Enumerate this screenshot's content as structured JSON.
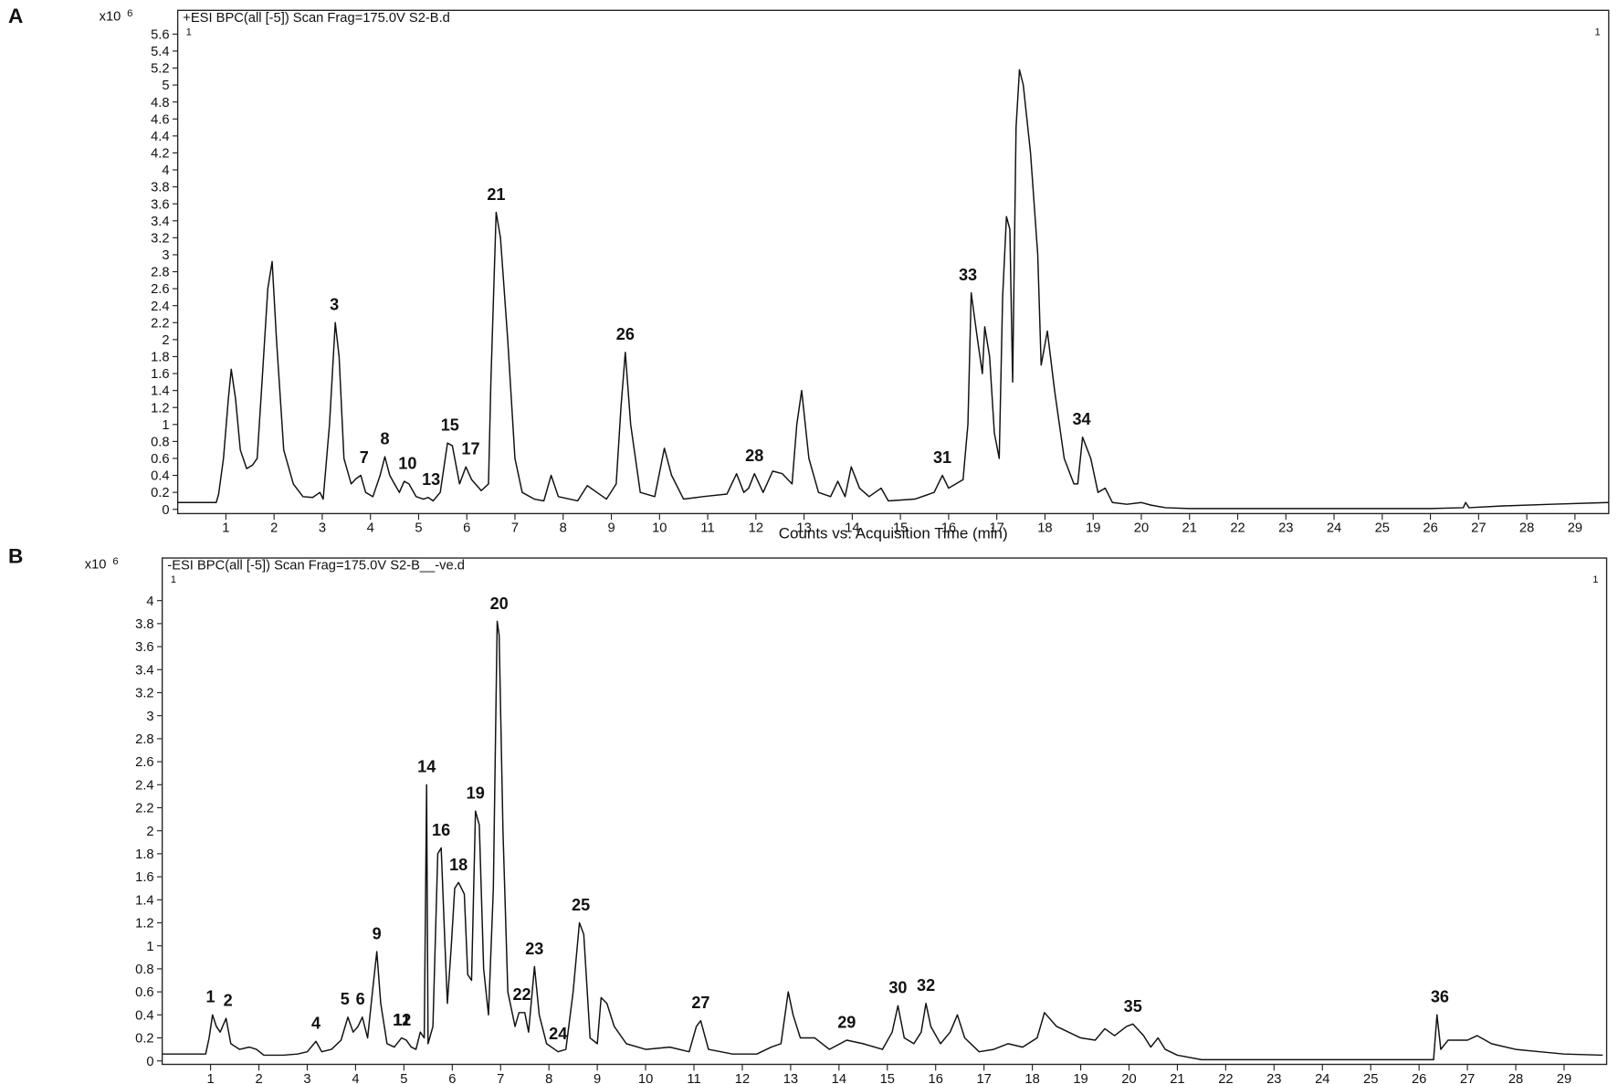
{
  "chart_data": [
    {
      "type": "line",
      "panel_label": "A",
      "title": "+ESI BPC(all [-5]) Scan Frag=175.0V S2-B.d",
      "y_scale": "x10",
      "y_scale_exponent": "6",
      "corner_marks": [
        "1",
        "1"
      ],
      "x_label": "Counts vs. Acquisition Time (min)",
      "color": "#111111",
      "grid": false,
      "xlim": [
        0,
        29.7
      ],
      "ylim": [
        -0.05,
        5.88
      ],
      "xticks": [
        1,
        2,
        3,
        4,
        5,
        6,
        7,
        8,
        9,
        10,
        11,
        12,
        13,
        14,
        15,
        16,
        17,
        18,
        19,
        20,
        21,
        22,
        23,
        24,
        25,
        26,
        27,
        28,
        29
      ],
      "yticks": [
        0,
        0.2,
        0.4,
        0.6,
        0.8,
        1,
        1.2,
        1.4,
        1.6,
        1.8,
        2,
        2.2,
        2.4,
        2.6,
        2.8,
        3,
        3.2,
        3.4,
        3.6,
        3.8,
        4,
        4.2,
        4.4,
        4.6,
        4.8,
        5,
        5.2,
        5.4,
        5.6
      ],
      "x": [
        0,
        0.8,
        0.85,
        0.95,
        1.05,
        1.11,
        1.2,
        1.3,
        1.43,
        1.55,
        1.65,
        1.75,
        1.87,
        1.96,
        2.05,
        2.2,
        2.4,
        2.6,
        2.8,
        2.95,
        3.02,
        3.15,
        3.27,
        3.35,
        3.45,
        3.6,
        3.7,
        3.8,
        3.9,
        4.05,
        4.2,
        4.3,
        4.4,
        4.5,
        4.6,
        4.7,
        4.8,
        4.95,
        5.1,
        5.2,
        5.3,
        5.45,
        5.6,
        5.7,
        5.85,
        5.98,
        6.1,
        6.3,
        6.45,
        6.5,
        6.61,
        6.7,
        6.85,
        7.0,
        7.15,
        7.4,
        7.6,
        7.75,
        7.9,
        8.3,
        8.5,
        8.7,
        8.9,
        9.1,
        9.2,
        9.29,
        9.4,
        9.6,
        9.9,
        10.1,
        10.25,
        10.5,
        10.9,
        11.4,
        11.6,
        11.75,
        11.85,
        11.97,
        12.15,
        12.35,
        12.55,
        12.75,
        12.85,
        12.95,
        13.1,
        13.3,
        13.55,
        13.7,
        13.85,
        13.98,
        14.15,
        14.35,
        14.6,
        14.75,
        15.3,
        15.7,
        15.87,
        16.0,
        16.3,
        16.4,
        16.47,
        16.6,
        16.7,
        16.75,
        16.85,
        16.95,
        17.05,
        17.12,
        17.2,
        17.27,
        17.33,
        17.4,
        17.47,
        17.55,
        17.7,
        17.85,
        17.92,
        18.05,
        18.2,
        18.4,
        18.6,
        18.68,
        18.78,
        18.95,
        19.1,
        19.25,
        19.4,
        19.7,
        20.0,
        20.2,
        20.5,
        21.0,
        26.0,
        26.68,
        26.73,
        26.8,
        27.5,
        28.5,
        29.7
      ],
      "values": [
        0.08,
        0.08,
        0.18,
        0.6,
        1.3,
        1.65,
        1.3,
        0.7,
        0.48,
        0.52,
        0.6,
        1.5,
        2.6,
        2.92,
        2.0,
        0.7,
        0.3,
        0.15,
        0.14,
        0.2,
        0.12,
        1.0,
        2.2,
        1.8,
        0.6,
        0.3,
        0.36,
        0.4,
        0.2,
        0.15,
        0.4,
        0.62,
        0.4,
        0.3,
        0.2,
        0.33,
        0.3,
        0.15,
        0.12,
        0.14,
        0.1,
        0.2,
        0.78,
        0.75,
        0.3,
        0.5,
        0.35,
        0.22,
        0.3,
        1.5,
        3.5,
        3.2,
        2.0,
        0.6,
        0.2,
        0.12,
        0.1,
        0.4,
        0.15,
        0.1,
        0.28,
        0.2,
        0.12,
        0.3,
        1.2,
        1.85,
        1.0,
        0.2,
        0.15,
        0.72,
        0.4,
        0.12,
        0.15,
        0.18,
        0.42,
        0.2,
        0.25,
        0.42,
        0.2,
        0.45,
        0.42,
        0.3,
        1.0,
        1.4,
        0.6,
        0.2,
        0.15,
        0.33,
        0.15,
        0.5,
        0.25,
        0.15,
        0.25,
        0.1,
        0.12,
        0.2,
        0.4,
        0.25,
        0.35,
        1.0,
        2.55,
        2.0,
        1.6,
        2.15,
        1.8,
        0.9,
        0.6,
        2.5,
        3.45,
        3.3,
        1.5,
        4.5,
        5.18,
        5.0,
        4.2,
        3.0,
        1.7,
        2.1,
        1.4,
        0.6,
        0.3,
        0.3,
        0.85,
        0.6,
        0.2,
        0.25,
        0.08,
        0.06,
        0.08,
        0.05,
        0.02,
        0.01,
        0.01,
        0.02,
        0.08,
        0.02,
        0.04,
        0.06,
        0.08
      ],
      "peaks": {
        "labels": [
          "3",
          "7",
          "8",
          "10",
          "13",
          "15",
          "17",
          "21",
          "26",
          "28",
          "31",
          "33",
          "34"
        ],
        "x": [
          3.25,
          3.87,
          4.3,
          4.77,
          5.26,
          5.65,
          6.08,
          6.61,
          9.29,
          11.97,
          15.87,
          16.4,
          18.76
        ]
      }
    },
    {
      "type": "line",
      "panel_label": "B",
      "title": "-ESI BPC(all [-5]) Scan Frag=175.0V S2-B__-ve.d",
      "y_scale": "x10",
      "y_scale_exponent": "6",
      "corner_marks": [
        "1",
        "1"
      ],
      "color": "#111111",
      "grid": false,
      "xlim": [
        0,
        29.88
      ],
      "ylim": [
        -0.03,
        4.37
      ],
      "xticks": [
        1,
        2,
        3,
        4,
        5,
        6,
        7,
        8,
        9,
        10,
        11,
        12,
        13,
        14,
        15,
        16,
        17,
        18,
        19,
        20,
        21,
        22,
        23,
        24,
        25,
        26,
        27,
        28,
        29
      ],
      "yticks": [
        0,
        0.2,
        0.4,
        0.6,
        0.8,
        1,
        1.2,
        1.4,
        1.6,
        1.8,
        2,
        2.2,
        2.4,
        2.6,
        2.8,
        3,
        3.2,
        3.4,
        3.6,
        3.8,
        4
      ],
      "x": [
        0,
        0.9,
        0.97,
        1.04,
        1.12,
        1.2,
        1.32,
        1.42,
        1.6,
        1.8,
        1.95,
        2.1,
        2.5,
        2.8,
        3.0,
        3.18,
        3.3,
        3.5,
        3.7,
        3.84,
        3.95,
        4.05,
        4.14,
        4.25,
        4.35,
        4.44,
        4.52,
        4.65,
        4.8,
        4.95,
        5.05,
        5.15,
        5.25,
        5.34,
        5.42,
        5.47,
        5.5,
        5.6,
        5.7,
        5.77,
        5.85,
        5.9,
        5.98,
        6.05,
        6.13,
        6.25,
        6.32,
        6.4,
        6.48,
        6.56,
        6.65,
        6.75,
        6.85,
        6.93,
        6.97,
        7.05,
        7.15,
        7.3,
        7.38,
        7.5,
        7.58,
        7.7,
        7.8,
        7.95,
        8.19,
        8.35,
        8.5,
        8.63,
        8.72,
        8.85,
        9.0,
        9.08,
        9.2,
        9.35,
        9.6,
        10.0,
        10.5,
        10.9,
        11.05,
        11.14,
        11.3,
        11.8,
        12.3,
        12.6,
        12.8,
        12.95,
        13.05,
        13.2,
        13.5,
        13.8,
        14.16,
        14.5,
        14.9,
        15.1,
        15.22,
        15.35,
        15.55,
        15.7,
        15.8,
        15.9,
        16.1,
        16.3,
        16.45,
        16.6,
        16.9,
        17.2,
        17.5,
        17.8,
        18.1,
        18.25,
        18.5,
        19.0,
        19.3,
        19.5,
        19.7,
        19.95,
        20.08,
        20.3,
        20.45,
        20.6,
        20.75,
        21.0,
        21.5,
        26.3,
        26.37,
        26.45,
        26.6,
        27.0,
        27.2,
        27.5,
        28.0,
        28.5,
        29.0,
        29.8
      ],
      "values": [
        0.06,
        0.06,
        0.2,
        0.4,
        0.3,
        0.25,
        0.37,
        0.15,
        0.1,
        0.12,
        0.1,
        0.05,
        0.05,
        0.06,
        0.08,
        0.17,
        0.08,
        0.1,
        0.18,
        0.38,
        0.25,
        0.3,
        0.38,
        0.2,
        0.6,
        0.95,
        0.5,
        0.15,
        0.12,
        0.2,
        0.18,
        0.12,
        0.1,
        0.25,
        0.2,
        2.4,
        0.15,
        0.3,
        1.8,
        1.85,
        1.0,
        0.5,
        1.0,
        1.5,
        1.55,
        1.45,
        0.75,
        0.7,
        2.17,
        2.05,
        0.8,
        0.4,
        1.5,
        3.82,
        3.7,
        2.0,
        0.6,
        0.3,
        0.42,
        0.42,
        0.25,
        0.82,
        0.4,
        0.15,
        0.08,
        0.1,
        0.6,
        1.2,
        1.1,
        0.2,
        0.15,
        0.55,
        0.5,
        0.3,
        0.15,
        0.1,
        0.12,
        0.08,
        0.3,
        0.35,
        0.1,
        0.06,
        0.06,
        0.12,
        0.15,
        0.6,
        0.4,
        0.2,
        0.2,
        0.1,
        0.18,
        0.15,
        0.1,
        0.25,
        0.48,
        0.2,
        0.15,
        0.25,
        0.5,
        0.3,
        0.15,
        0.25,
        0.4,
        0.2,
        0.08,
        0.1,
        0.15,
        0.12,
        0.2,
        0.42,
        0.3,
        0.2,
        0.18,
        0.28,
        0.22,
        0.3,
        0.32,
        0.22,
        0.12,
        0.2,
        0.1,
        0.05,
        0.01,
        0.01,
        0.4,
        0.1,
        0.18,
        0.18,
        0.22,
        0.15,
        0.1,
        0.08,
        0.06,
        0.05
      ],
      "peaks": {
        "labels": [
          "1",
          "2",
          "4",
          "5",
          "6",
          "9",
          "11",
          "12",
          "14",
          "16",
          "18",
          "19",
          "20",
          "22",
          "23",
          "24",
          "25",
          "27",
          "29",
          "30",
          "32",
          "35",
          "36"
        ],
        "x": [
          1.0,
          1.36,
          3.18,
          3.78,
          4.1,
          4.44,
          4.96,
          4.96,
          5.47,
          5.77,
          6.13,
          6.48,
          6.97,
          7.44,
          7.7,
          8.19,
          8.66,
          11.14,
          14.16,
          15.22,
          15.8,
          20.08,
          26.43
        ]
      }
    }
  ]
}
